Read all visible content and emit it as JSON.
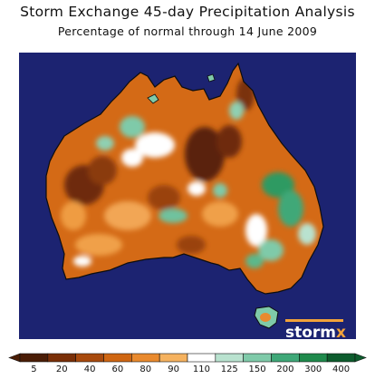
{
  "header": {
    "title": "Storm Exchange 45-day Precipitation Analysis",
    "subtitle": "Percentage of normal through 14 June 2009"
  },
  "brand": {
    "name": "storm",
    "mark": "x",
    "accent": "#f2a23a"
  },
  "colors": {
    "ocean": "#1c2371",
    "land_outline": "#0d0d0d"
  },
  "legend": {
    "ticks": [
      "5",
      "20",
      "40",
      "60",
      "80",
      "90",
      "110",
      "125",
      "150",
      "200",
      "300",
      "400"
    ],
    "colors": [
      "#4a1d06",
      "#7a2f07",
      "#a84a0d",
      "#cf6612",
      "#e98a2e",
      "#f5b25f",
      "#ffffff",
      "#b9e2cf",
      "#7fcaa9",
      "#3fa878",
      "#1f8a4c",
      "#0d5c2d"
    ]
  }
}
